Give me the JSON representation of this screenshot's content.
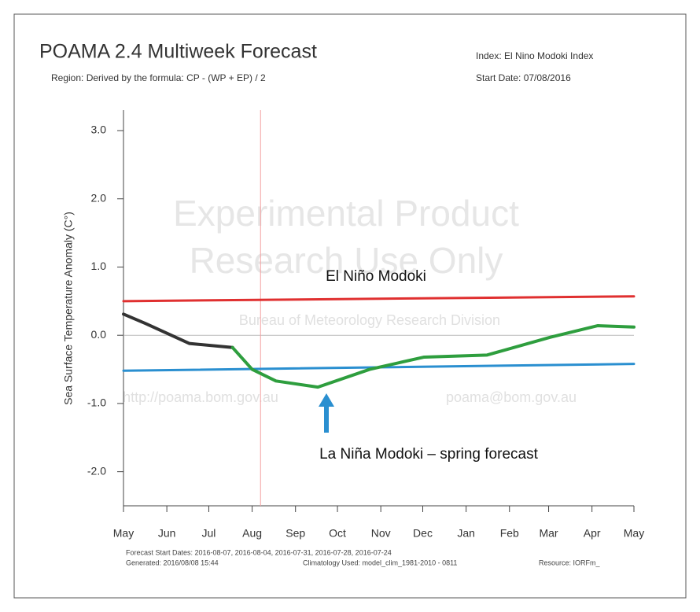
{
  "chart_data": {
    "type": "line",
    "title": "POAMA 2.4 Multiweek Forecast",
    "subtitle": "Region: Derived by the formula: CP - (WP + EP) / 2",
    "index_label": "Index: El Nino Modoki Index",
    "start_date_label": "Start Date: 07/08/2016",
    "y_label": "Sea Surface Temperature Anomaly (C°)",
    "watermark": [
      "Experimental Product",
      "Research Use Only",
      "Bureau of Meteorology Research Division",
      "http://poama.bom.gov.au",
      "poama@bom.gov.au"
    ],
    "annotations": [
      "El Niño Modoki",
      "La Niña Modoki – spring forecast"
    ],
    "footer": [
      "Forecast Start Dates: 2016-08-07, 2016-08-04, 2016-07-31, 2016-07-28, 2016-07-24",
      "Generated: 2016/08/08 15:44",
      "Climatology Used: model_clim_1981-2010 - 0811",
      "Resource: IORFm_"
    ],
    "xlim": [
      0,
      365
    ],
    "xticks": [
      {
        "value": 0,
        "label": "May"
      },
      {
        "value": 31,
        "label": "Jun"
      },
      {
        "value": 61,
        "label": "Jul"
      },
      {
        "value": 92,
        "label": "Aug"
      },
      {
        "value": 123,
        "label": "Sep"
      },
      {
        "value": 153,
        "label": "Oct"
      },
      {
        "value": 184,
        "label": "Nov"
      },
      {
        "value": 214,
        "label": "Dec"
      },
      {
        "value": 245,
        "label": "Jan"
      },
      {
        "value": 276,
        "label": "Feb"
      },
      {
        "value": 304,
        "label": "Mar"
      },
      {
        "value": 335,
        "label": "Apr"
      },
      {
        "value": 365,
        "label": "May"
      }
    ],
    "ylim": [
      -2.5,
      3.3
    ],
    "yticks": [
      {
        "value": -2,
        "label": "-2.0"
      },
      {
        "value": -1,
        "label": "-1.0"
      },
      {
        "value": 0,
        "label": "0.0"
      },
      {
        "value": 1,
        "label": "1.0"
      },
      {
        "value": 2,
        "label": "2.0"
      },
      {
        "value": 3,
        "label": "3.0"
      }
    ],
    "zero_line": {
      "y": 0,
      "color": "#bbbbbb"
    },
    "start_line": {
      "x": 98,
      "color": "#f4a0a0"
    },
    "series": [
      {
        "color": "#e03030",
        "width": 3,
        "x": [
          0,
          365
        ],
        "values": [
          0.5,
          0.57
        ]
      },
      {
        "color": "#2a8fd0",
        "width": 3,
        "x": [
          0,
          365
        ],
        "values": [
          -0.52,
          -0.42
        ]
      },
      {
        "color": "#333333",
        "width": 4,
        "x": [
          0,
          16,
          47,
          78
        ],
        "values": [
          0.31,
          0.17,
          -0.12,
          -0.18
        ]
      },
      {
        "color": "#2e9e3e",
        "width": 4,
        "x": [
          78,
          92,
          109,
          139,
          176,
          215,
          260,
          305,
          339,
          365
        ],
        "values": [
          -0.18,
          -0.5,
          -0.67,
          -0.76,
          -0.5,
          -0.32,
          -0.29,
          -0.03,
          0.14,
          0.12
        ]
      }
    ]
  }
}
